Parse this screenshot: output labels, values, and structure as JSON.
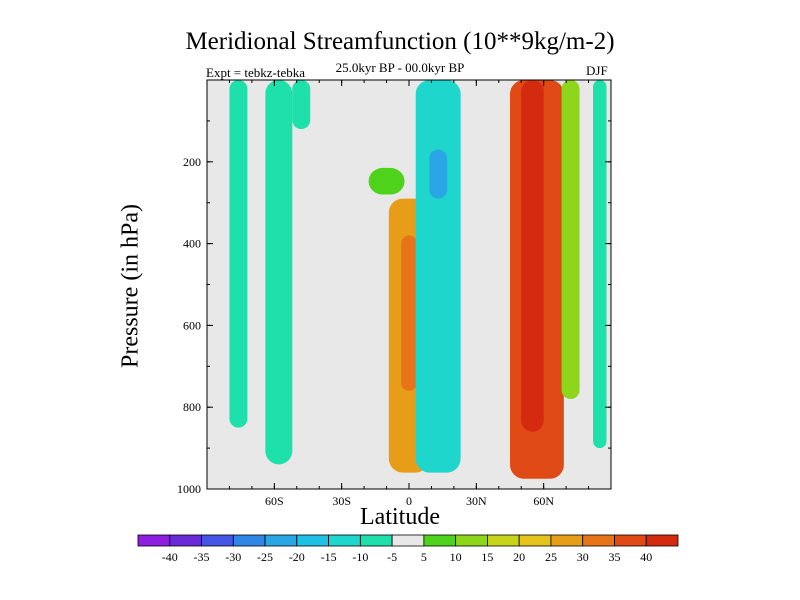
{
  "chart_data": {
    "type": "heatmap",
    "title": "Meridional Streamfunction (10**9kg/m-2)",
    "subtitle": "25.0kyr BP - 00.0kyr BP",
    "left_label": "Expt = tebkz-tebka",
    "right_label": "DJF",
    "xlabel": "Latitude",
    "ylabel": "Pressure (in hPa)",
    "xlim": [
      -90,
      90
    ],
    "ylim": [
      1000,
      0
    ],
    "x_ticks": [
      {
        "value": -60,
        "label": "60S"
      },
      {
        "value": -30,
        "label": "30S"
      },
      {
        "value": 0,
        "label": "0"
      },
      {
        "value": 30,
        "label": "30N"
      },
      {
        "value": 60,
        "label": "60N"
      }
    ],
    "y_ticks": [
      {
        "value": 200,
        "label": "200"
      },
      {
        "value": 400,
        "label": "400"
      },
      {
        "value": 600,
        "label": "600"
      },
      {
        "value": 800,
        "label": "800"
      },
      {
        "value": 1000,
        "label": "1000"
      }
    ],
    "colorbar": {
      "levels": [
        -40,
        -35,
        -30,
        -25,
        -20,
        -15,
        -10,
        -5,
        5,
        10,
        15,
        20,
        25,
        30,
        35,
        40
      ],
      "labels": [
        "-40",
        "-35",
        "-30",
        "-25",
        "-20",
        "-15",
        "-10",
        "-5",
        "5",
        "10",
        "15",
        "20",
        "25",
        "30",
        "35",
        "40"
      ],
      "colors": [
        "#8f1fe0",
        "#6a2ad8",
        "#4555e6",
        "#2f86e6",
        "#2aa6e6",
        "#1fc0e6",
        "#1fd6cc",
        "#1ee0aa",
        "#e8e8e8",
        "#4fd21c",
        "#8ed61c",
        "#c8d41c",
        "#e6c21c",
        "#e89d18",
        "#e8741a",
        "#e04a16",
        "#d42a10"
      ]
    },
    "background_color": "#e8e8e8",
    "features": [
      {
        "name": "sh-polar-band",
        "lat": -76,
        "half_width": 4,
        "p_top": 0,
        "p_bottom": 850,
        "value": -6
      },
      {
        "name": "sh-subpolar-band",
        "lat": -58,
        "half_width": 6,
        "p_top": 0,
        "p_bottom": 940,
        "value": -8
      },
      {
        "name": "sh-midlat-cell",
        "lat": -48,
        "half_width": 4,
        "p_top": 0,
        "p_bottom": 120,
        "value": -6
      },
      {
        "name": "tropical-positive-cell",
        "lat": 0,
        "half_width": 9,
        "p_top": 290,
        "p_bottom": 960,
        "value": 28
      },
      {
        "name": "tropical-positive-core",
        "lat": 0,
        "half_width": 3.5,
        "p_top": 380,
        "p_bottom": 760,
        "value": 34
      },
      {
        "name": "tropical-upper-band",
        "lat": -10,
        "half_width": 8,
        "p_top": 215,
        "p_bottom": 280,
        "value": 8
      },
      {
        "name": "nh-tropical-negative",
        "lat": 13,
        "half_width": 10,
        "p_top": 0,
        "p_bottom": 960,
        "value": -14
      },
      {
        "name": "nh-tropical-negative-core",
        "lat": 13,
        "half_width": 4,
        "p_top": 170,
        "p_bottom": 290,
        "value": -24
      },
      {
        "name": "nh-midlat-positive-cell",
        "lat": 57,
        "half_width": 12,
        "p_top": 0,
        "p_bottom": 975,
        "value": 36
      },
      {
        "name": "nh-midlat-positive-core",
        "lat": 55,
        "half_width": 5,
        "p_top": 0,
        "p_bottom": 860,
        "value": 42
      },
      {
        "name": "nh-highlat-edge",
        "lat": 72,
        "half_width": 4,
        "p_top": 0,
        "p_bottom": 780,
        "value": 10
      },
      {
        "name": "nh-polar-band",
        "lat": 85,
        "half_width": 3,
        "p_top": 0,
        "p_bottom": 900,
        "value": -8
      }
    ]
  }
}
